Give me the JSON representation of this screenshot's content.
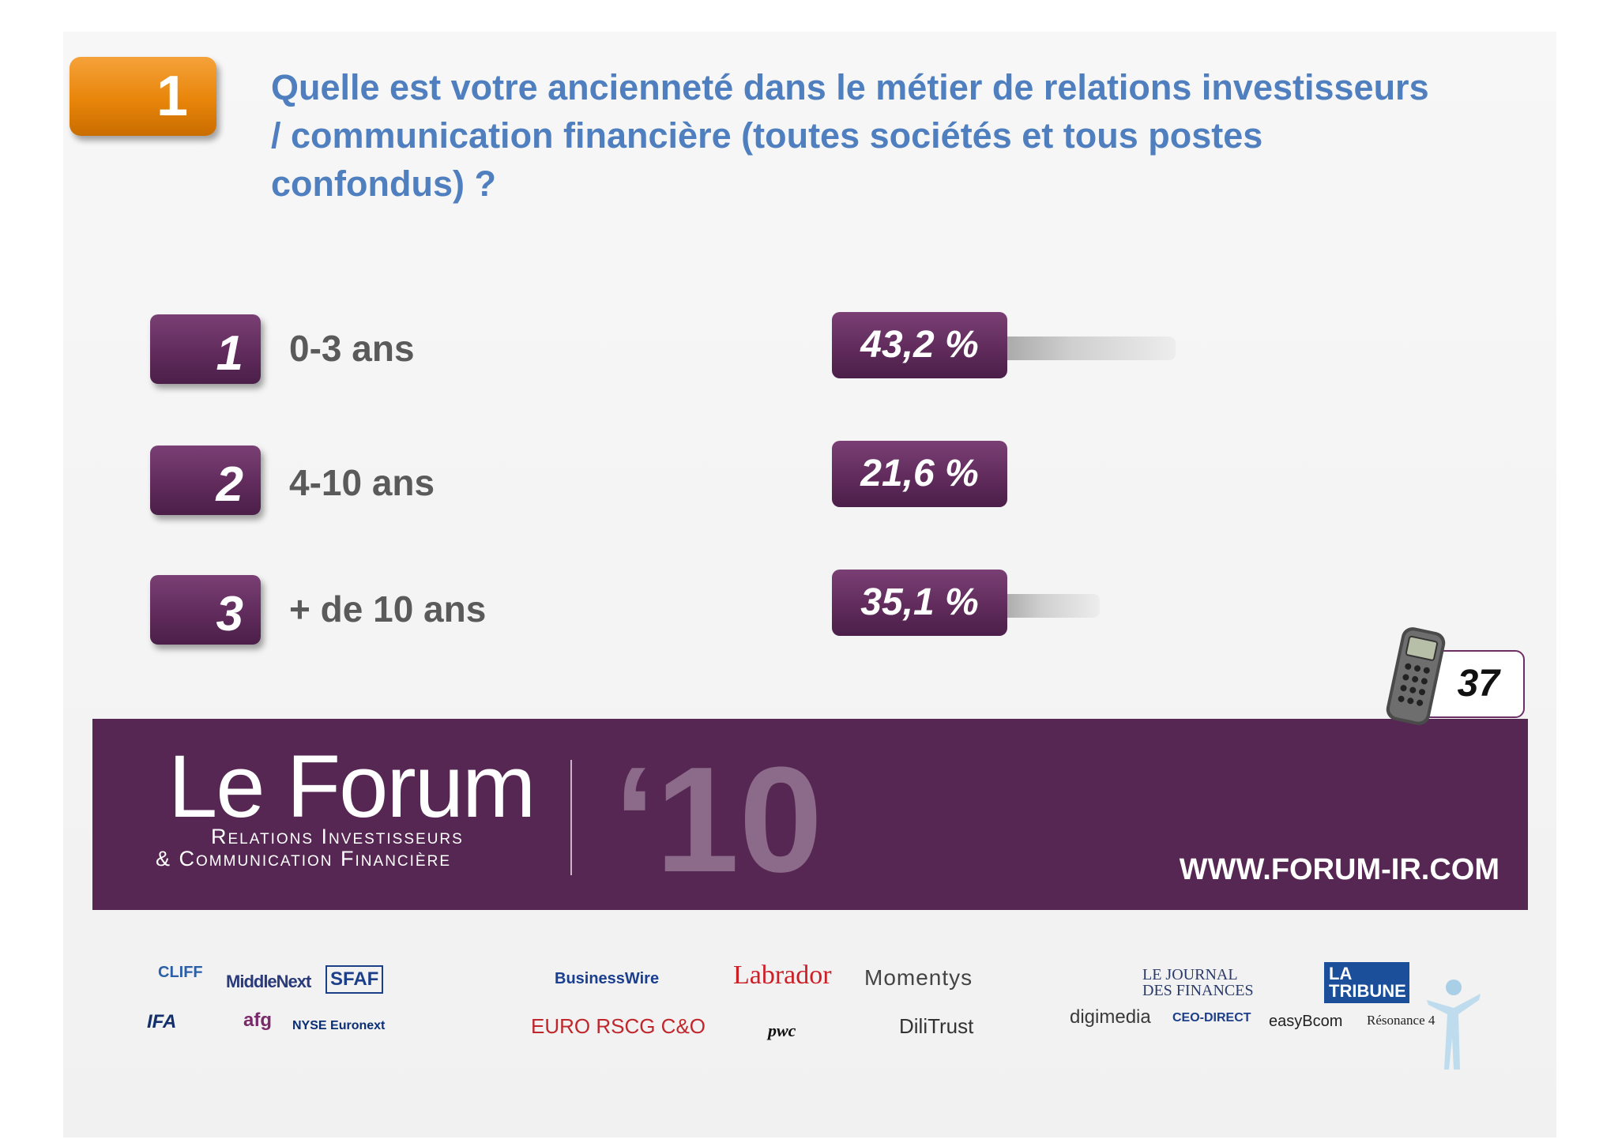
{
  "question": {
    "number": "1",
    "text": "Quelle est votre ancienneté dans le métier de relations investisseurs / communication financière (toutes sociétés et tous postes confondus) ?"
  },
  "chart_data": {
    "type": "bar",
    "orientation": "horizontal",
    "categories": [
      "0-3 ans",
      "4-10 ans",
      "+ de 10 ans"
    ],
    "option_numbers": [
      "1",
      "2",
      "3"
    ],
    "values": [
      43.2,
      21.6,
      35.1
    ],
    "value_labels": [
      "43,2 %",
      "21,6 %",
      "35,1 %"
    ],
    "unit": "%"
  },
  "respondents": "37",
  "banner": {
    "title": "Le Forum",
    "subtitle_line1": "Relations Investisseurs",
    "subtitle_line2": "& Communication Financière",
    "year": "‘10",
    "url": "WWW.FORUM-IR.COM"
  },
  "colors": {
    "accent_orange": "#e8850a",
    "brand_purple": "#562753",
    "question_blue": "#4f7fbf"
  },
  "sponsors": {
    "cliff": "CLIFF",
    "middlenext": "MiddleNext",
    "sfaf": "SFAF",
    "ifa": "IFA",
    "afg": "afg",
    "nyse": "NYSE Euronext",
    "businesswire": "BusinessWire",
    "labrador": "Labrador",
    "momentys": "Momentys",
    "euro_rscg": "EURO RSCG C&O",
    "pwc": "pwc",
    "dilitrust": "DiliTrust",
    "jdf": "LE JOURNAL DES FINANCES",
    "tribune": "LA TRIBUNE",
    "digimedia": "digimedia",
    "ceo_direct": "CEO-DIRECT",
    "easybourse": "easyBcom",
    "resonance": "Résonance 4"
  }
}
